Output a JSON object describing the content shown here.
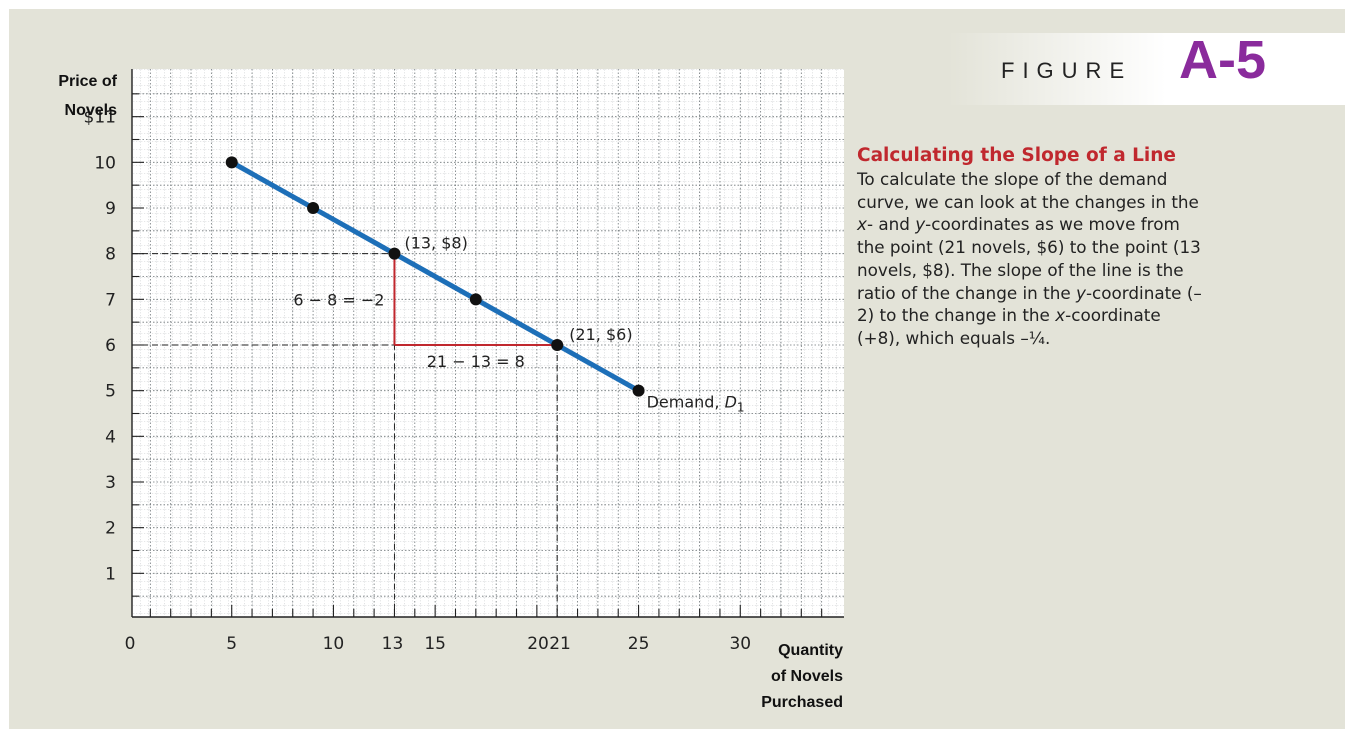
{
  "figure": {
    "word": "FIGURE",
    "number": "A-5"
  },
  "caption": {
    "title": "Calculating the Slope of a Line",
    "body_parts": [
      "To calculate the slope of the demand curve, we can look at the changes in the ",
      {
        "i": "x"
      },
      "- and ",
      {
        "i": "y"
      },
      "-coordinates as we move from the point (21 novels, $6) to the point (13 novels, $8). The slope of the line is the ratio of the change in the ",
      {
        "i": "y"
      },
      "-coordinate (–2) to the change in the ",
      {
        "i": "x"
      },
      "-coordinate (+8), which equals –¼."
    ]
  },
  "chart_data": {
    "type": "line",
    "ylabel_lines": [
      "Price of",
      "Novels"
    ],
    "xlabel_lines": [
      "Quantity",
      "of Novels",
      "Purchased"
    ],
    "xlim": [
      0,
      35
    ],
    "ylim": [
      0,
      12
    ],
    "x_ticks": [
      {
        "value": 0,
        "label": "0"
      },
      {
        "value": 5,
        "label": "5"
      },
      {
        "value": 10,
        "label": "10"
      },
      {
        "value": 13,
        "label": "13"
      },
      {
        "value": 15,
        "label": "15"
      },
      {
        "value": 20,
        "label": "20"
      },
      {
        "value": 21,
        "label": "21"
      },
      {
        "value": 25,
        "label": "25"
      },
      {
        "value": 30,
        "label": "30"
      }
    ],
    "y_ticks": [
      {
        "value": 1,
        "label": "1"
      },
      {
        "value": 2,
        "label": "2"
      },
      {
        "value": 3,
        "label": "3"
      },
      {
        "value": 4,
        "label": "4"
      },
      {
        "value": 5,
        "label": "5"
      },
      {
        "value": 6,
        "label": "6"
      },
      {
        "value": 7,
        "label": "7"
      },
      {
        "value": 8,
        "label": "8"
      },
      {
        "value": 9,
        "label": "9"
      },
      {
        "value": 10,
        "label": "10"
      },
      {
        "value": 11,
        "label": "$11"
      }
    ],
    "grid": true,
    "series": [
      {
        "name": "Demand, D1",
        "label_text": "Demand, ",
        "label_italic": "D",
        "label_sub": "1",
        "color": "#1d6fb8",
        "x": [
          5,
          9,
          13,
          17,
          21,
          25
        ],
        "y": [
          10,
          9,
          8,
          7,
          6,
          5
        ]
      }
    ],
    "highlighted_points": [
      {
        "x": 13,
        "y": 8,
        "label": "(13, $8)"
      },
      {
        "x": 21,
        "y": 6,
        "label": "(21, $6)"
      }
    ],
    "slope_triangle": {
      "color": "#c0282e",
      "vertical_label": "6 − 8 = −2",
      "horizontal_label": "21 − 13 = 8"
    }
  }
}
